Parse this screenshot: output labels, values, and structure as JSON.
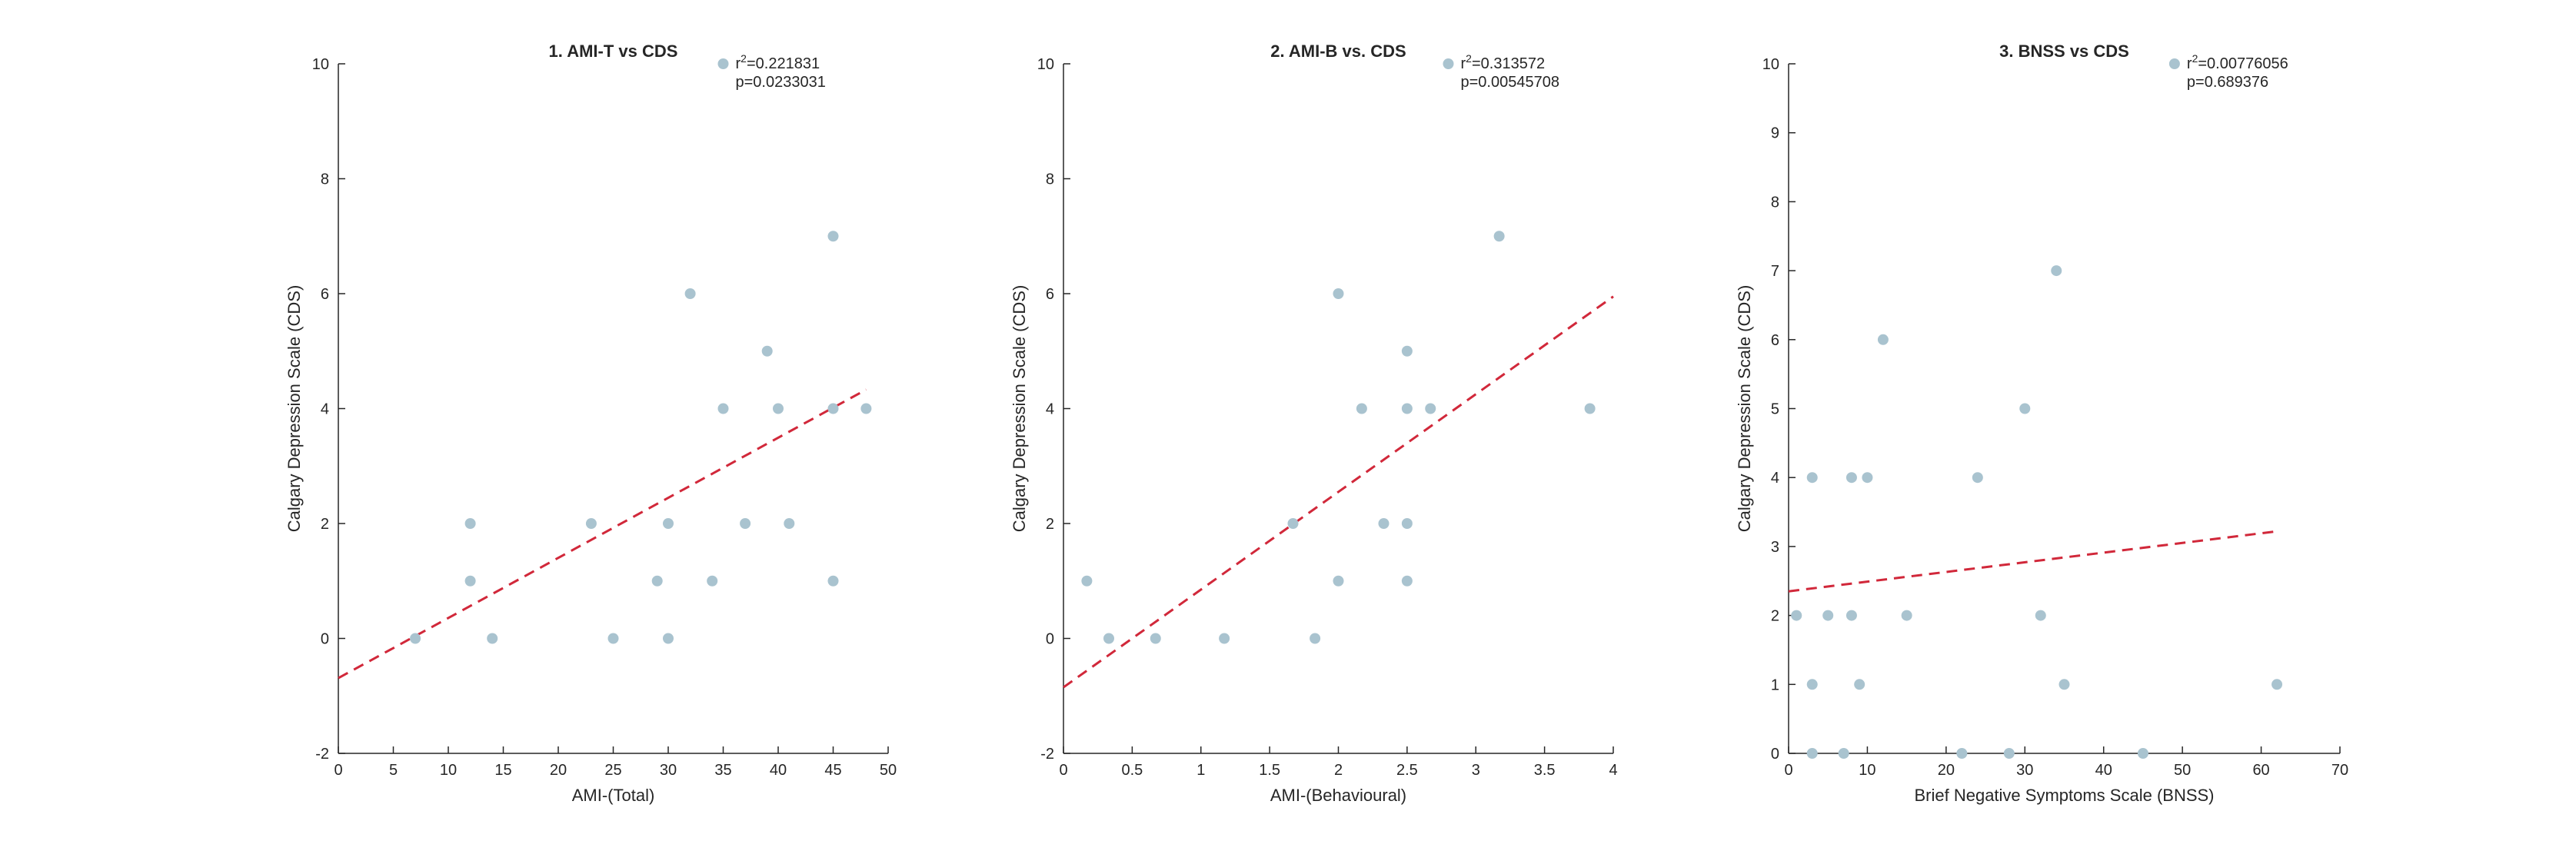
{
  "colors": {
    "marker": "#a9c3cf",
    "fit_line": "#d1283a",
    "axis": "#262626",
    "background": "#ffffff"
  },
  "chart_data": [
    {
      "type": "scatter",
      "title": "1. AMI-T vs CDS",
      "xlabel": "AMI-(Total)",
      "ylabel": "Calgary Depression Scale (CDS)",
      "xlim": [
        0,
        50
      ],
      "ylim": [
        -2,
        10
      ],
      "xticks": [
        0,
        5,
        10,
        15,
        20,
        25,
        30,
        35,
        40,
        45,
        50
      ],
      "yticks": [
        -2,
        0,
        2,
        4,
        6,
        8,
        10
      ],
      "legend": {
        "position": "top",
        "r2_label": "r",
        "r2_value": "=0.221831",
        "p_label": "p=0.0233031"
      },
      "points": [
        [
          7,
          0
        ],
        [
          12,
          2
        ],
        [
          12,
          1
        ],
        [
          14,
          0
        ],
        [
          23,
          2
        ],
        [
          25,
          0
        ],
        [
          29,
          1
        ],
        [
          30,
          2
        ],
        [
          30,
          0
        ],
        [
          32,
          6
        ],
        [
          34,
          1
        ],
        [
          35,
          4
        ],
        [
          37,
          2
        ],
        [
          39,
          5
        ],
        [
          40,
          4
        ],
        [
          41,
          2
        ],
        [
          45,
          7
        ],
        [
          45,
          4
        ],
        [
          45,
          1
        ],
        [
          48,
          4
        ]
      ],
      "fit": {
        "x": [
          0,
          48
        ],
        "y": [
          -0.69,
          4.33
        ]
      }
    },
    {
      "type": "scatter",
      "title": "2. AMI-B vs. CDS",
      "xlabel": "AMI-(Behavioural)",
      "ylabel": "Calgary Depression Scale (CDS)",
      "xlim": [
        0,
        4
      ],
      "ylim": [
        -2,
        10
      ],
      "xticks": [
        0,
        0.5,
        1,
        1.5,
        2,
        2.5,
        3,
        3.5,
        4
      ],
      "yticks": [
        -2,
        0,
        2,
        4,
        6,
        8,
        10
      ],
      "legend": {
        "position": "top",
        "r2_label": "r",
        "r2_value": "=0.313572",
        "p_label": "p=0.00545708"
      },
      "points": [
        [
          0.17,
          1
        ],
        [
          0.33,
          0
        ],
        [
          0.67,
          0
        ],
        [
          1.17,
          0
        ],
        [
          1.67,
          2
        ],
        [
          1.83,
          0
        ],
        [
          2,
          6
        ],
        [
          2,
          1
        ],
        [
          2.17,
          4
        ],
        [
          2.33,
          2
        ],
        [
          2.5,
          5
        ],
        [
          2.5,
          4
        ],
        [
          2.5,
          2
        ],
        [
          2.5,
          1
        ],
        [
          2.67,
          4
        ],
        [
          3.17,
          7
        ],
        [
          3.83,
          4
        ]
      ],
      "fit": {
        "x": [
          0,
          4
        ],
        "y": [
          -0.85,
          5.95
        ]
      }
    },
    {
      "type": "scatter",
      "title": "3. BNSS vs CDS",
      "xlabel": "Brief Negative Symptoms Scale (BNSS)",
      "ylabel": "Calgary Depression Scale (CDS)",
      "xlim": [
        0,
        70
      ],
      "ylim": [
        0,
        10
      ],
      "xticks": [
        0,
        10,
        20,
        30,
        40,
        50,
        60,
        70
      ],
      "yticks": [
        0,
        1,
        2,
        3,
        4,
        5,
        6,
        7,
        8,
        9,
        10
      ],
      "legend": {
        "position": "top",
        "r2_label": "r",
        "r2_value": "=0.00776056",
        "p_label": "p=0.689376"
      },
      "points": [
        [
          1,
          2
        ],
        [
          3,
          4
        ],
        [
          3,
          1
        ],
        [
          3,
          0
        ],
        [
          5,
          2
        ],
        [
          7,
          0
        ],
        [
          8,
          4
        ],
        [
          8,
          2
        ],
        [
          9,
          1
        ],
        [
          10,
          4
        ],
        [
          12,
          6
        ],
        [
          15,
          2
        ],
        [
          22,
          0
        ],
        [
          24,
          4
        ],
        [
          28,
          0
        ],
        [
          30,
          5
        ],
        [
          32,
          2
        ],
        [
          34,
          7
        ],
        [
          35,
          1
        ],
        [
          45,
          0
        ],
        [
          62,
          1
        ]
      ],
      "fit": {
        "x": [
          0,
          62
        ],
        "y": [
          2.35,
          3.22
        ]
      }
    }
  ]
}
